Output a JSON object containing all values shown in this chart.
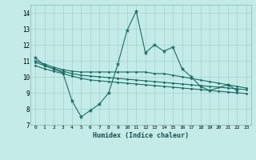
{
  "xlabel": "Humidex (Indice chaleur)",
  "background_color": "#c5ebe8",
  "grid_color": "#9dd4d0",
  "line_color": "#1a6b65",
  "xlim": [
    -0.5,
    23.5
  ],
  "ylim": [
    7,
    14.5
  ],
  "yticks": [
    7,
    8,
    9,
    10,
    11,
    12,
    13,
    14
  ],
  "xticks": [
    0,
    1,
    2,
    3,
    4,
    5,
    6,
    7,
    8,
    9,
    10,
    11,
    12,
    13,
    14,
    15,
    16,
    17,
    18,
    19,
    20,
    21,
    22,
    23
  ],
  "line1_x": [
    0,
    1,
    2,
    3,
    4,
    5,
    6,
    7,
    8,
    9,
    10,
    11,
    12,
    13,
    14,
    15,
    16,
    17,
    18,
    19,
    21,
    22
  ],
  "line1_y": [
    11.2,
    10.7,
    10.5,
    10.25,
    8.5,
    7.5,
    7.9,
    8.3,
    9.0,
    10.8,
    12.9,
    14.1,
    11.5,
    12.0,
    11.6,
    11.85,
    10.5,
    10.0,
    9.4,
    9.15,
    9.5,
    9.15
  ],
  "line2_x": [
    0,
    1,
    2,
    3,
    4,
    5,
    6,
    7,
    8,
    9,
    10,
    11,
    12,
    13,
    14,
    15,
    16,
    17,
    18,
    19,
    20,
    21,
    22,
    23
  ],
  "line2_y": [
    11.0,
    10.8,
    10.6,
    10.45,
    10.35,
    10.3,
    10.3,
    10.3,
    10.3,
    10.3,
    10.3,
    10.3,
    10.3,
    10.2,
    10.2,
    10.1,
    10.0,
    9.9,
    9.8,
    9.7,
    9.6,
    9.5,
    9.4,
    9.3
  ],
  "line3_x": [
    0,
    1,
    2,
    3,
    4,
    5,
    6,
    7,
    8,
    9,
    10,
    11,
    12,
    13,
    14,
    15,
    16,
    17,
    18,
    19,
    20,
    21,
    22,
    23
  ],
  "line3_y": [
    10.9,
    10.7,
    10.5,
    10.35,
    10.2,
    10.1,
    10.05,
    10.0,
    9.95,
    9.9,
    9.85,
    9.8,
    9.75,
    9.7,
    9.65,
    9.6,
    9.55,
    9.5,
    9.45,
    9.4,
    9.35,
    9.3,
    9.25,
    9.2
  ],
  "line4_x": [
    0,
    1,
    2,
    3,
    4,
    5,
    6,
    7,
    8,
    9,
    10,
    11,
    12,
    13,
    14,
    15,
    16,
    17,
    18,
    19,
    20,
    21,
    22,
    23
  ],
  "line4_y": [
    10.7,
    10.5,
    10.35,
    10.2,
    10.05,
    9.9,
    9.8,
    9.75,
    9.7,
    9.65,
    9.6,
    9.55,
    9.5,
    9.45,
    9.4,
    9.35,
    9.3,
    9.25,
    9.2,
    9.15,
    9.1,
    9.05,
    9.0,
    8.95
  ]
}
